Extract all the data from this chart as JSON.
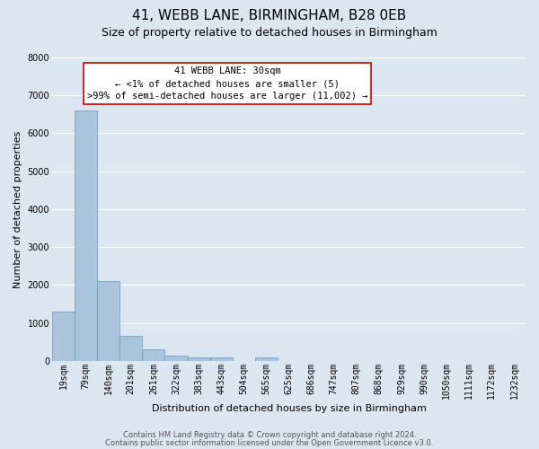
{
  "title": "41, WEBB LANE, BIRMINGHAM, B28 0EB",
  "subtitle": "Size of property relative to detached houses in Birmingham",
  "xlabel": "Distribution of detached houses by size in Birmingham",
  "ylabel": "Number of detached properties",
  "bin_labels": [
    "19sqm",
    "79sqm",
    "140sqm",
    "201sqm",
    "261sqm",
    "322sqm",
    "383sqm",
    "443sqm",
    "504sqm",
    "565sqm",
    "625sqm",
    "686sqm",
    "747sqm",
    "807sqm",
    "868sqm",
    "929sqm",
    "990sqm",
    "1050sqm",
    "1111sqm",
    "1172sqm",
    "1232sqm"
  ],
  "bar_values": [
    1300,
    6600,
    2100,
    650,
    300,
    150,
    100,
    100,
    5,
    100,
    0,
    0,
    0,
    0,
    0,
    0,
    0,
    0,
    0,
    0,
    0
  ],
  "bar_color": "#aac4de",
  "bar_edge_color": "#6699bb",
  "ylim": [
    0,
    8000
  ],
  "yticks": [
    0,
    1000,
    2000,
    3000,
    4000,
    5000,
    6000,
    7000,
    8000
  ],
  "annotation_box_text_line1": "41 WEBB LANE: 30sqm",
  "annotation_box_text_line2": "← <1% of detached houses are smaller (5)",
  "annotation_box_text_line3": ">99% of semi-detached houses are larger (11,002) →",
  "annotation_box_color": "white",
  "annotation_box_edge_color": "#cc0000",
  "background_color": "#dce6f0",
  "plot_bg_color": "#dce6f0",
  "grid_color": "white",
  "title_fontsize": 11,
  "subtitle_fontsize": 9,
  "ylabel_fontsize": 8,
  "xlabel_fontsize": 8,
  "tick_fontsize": 7,
  "ann_fontsize": 7.5,
  "footer_line1": "Contains HM Land Registry data © Crown copyright and database right 2024.",
  "footer_line2": "Contains public sector information licensed under the Open Government Licence v3.0."
}
